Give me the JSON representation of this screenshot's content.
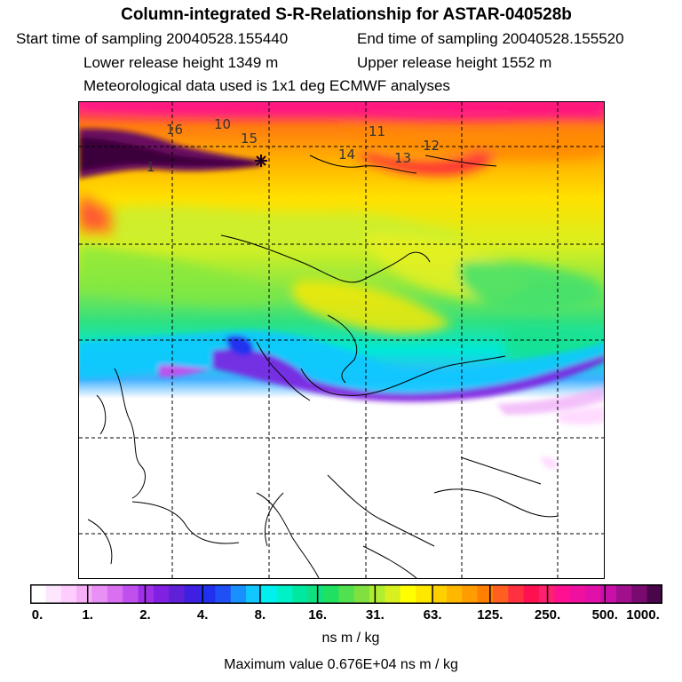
{
  "header": {
    "title": "Column-integrated S-R-Relationship for ASTAR-040528b",
    "start_time": "Start time of sampling 20040528.155440",
    "end_time": "End time of sampling 20040528.155520",
    "lower_height": "Lower release height 1349 m",
    "upper_height": "Upper release height 1552 m",
    "met_data": "Meteorological data used is 1x1 deg ECMWF analyses"
  },
  "map": {
    "trajectory_labels": [
      "16",
      "10",
      "15",
      "11",
      "14",
      "13",
      "12",
      "1"
    ],
    "release_marker": "release-point-star"
  },
  "colorbar": {
    "colors": [
      "#ffffff",
      "#ffe6ff",
      "#ffccff",
      "#f5b0f8",
      "#e890f5",
      "#d870f0",
      "#c050ee",
      "#a030e8",
      "#8020e0",
      "#6020d8",
      "#4020e0",
      "#2030ee",
      "#2050f5",
      "#1a90ff",
      "#10c8ff",
      "#00f0f0",
      "#00f0c8",
      "#00e8a0",
      "#10e080",
      "#20e060",
      "#50e050",
      "#80e040",
      "#b0ec30",
      "#d8f020",
      "#ffff00",
      "#ffe800",
      "#ffd000",
      "#ffb800",
      "#ff9c00",
      "#ff8000",
      "#ff6020",
      "#ff3040",
      "#ff1050",
      "#ff2070",
      "#ff1090",
      "#f010a0",
      "#e010a8",
      "#c810a8",
      "#a0108c",
      "#7a0a70",
      "#4a064a"
    ],
    "tick_labels": [
      "0.",
      "1.",
      "2.",
      "4.",
      "8.",
      "16.",
      "31.",
      "63.",
      "125.",
      "250.",
      "500.",
      "1000."
    ],
    "units": "ns m / kg"
  },
  "max_value_text": "Maximum value  0.676E+04 ns m / kg"
}
